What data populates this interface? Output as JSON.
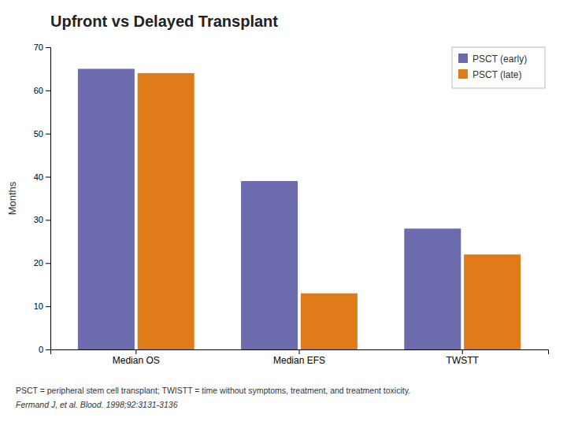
{
  "chart_data": {
    "type": "bar",
    "title": "Upfront vs Delayed Transplant",
    "categories": [
      "Median OS",
      "Median EFS",
      "TWSTT"
    ],
    "series": [
      {
        "name": "PSCT (early)",
        "color": "#6B6BAE",
        "values": [
          65,
          39,
          28
        ]
      },
      {
        "name": "PSCT (late)",
        "color": "#E07B1A",
        "values": [
          64,
          13,
          22
        ]
      }
    ],
    "ylabel": "Months",
    "ylim": [
      0,
      70
    ],
    "yticks": [
      0,
      10,
      20,
      30,
      40,
      50,
      60,
      70
    ],
    "grid": false,
    "legend": "upper right",
    "annotations": [
      "PSCT = peripheral stem cell transplant; TWISTT = time without symptoms, treatment, and treatment toxicity.",
      "Fermand J, et al. Blood. 1998;92:3131-3136"
    ]
  }
}
